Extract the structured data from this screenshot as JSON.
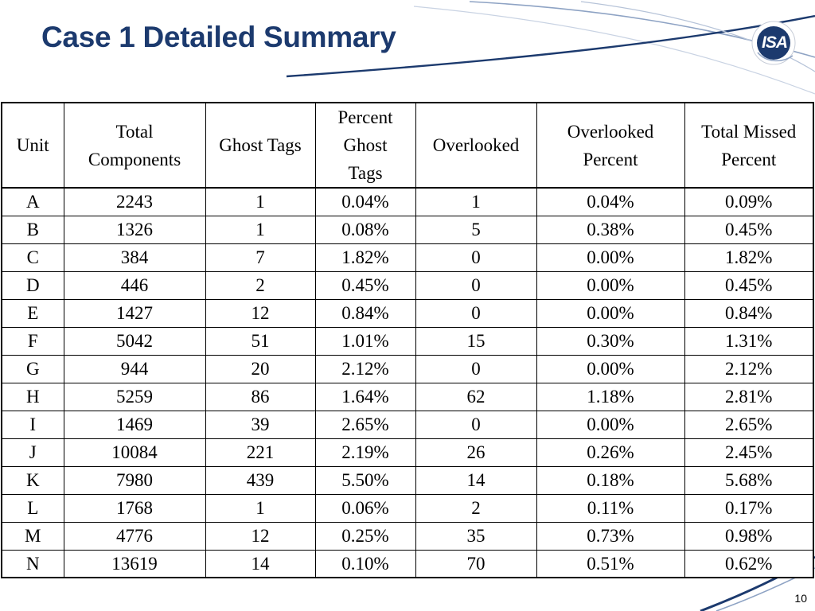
{
  "slide": {
    "title": "Case 1 Detailed Summary",
    "page_number": "10",
    "logo": {
      "text": "ISA",
      "accent_color": "#1c3a6e",
      "icon": "isa-logo-icon"
    },
    "colors": {
      "title": "#1c3a6e",
      "swoosh_dark": "#1c3a6e",
      "swoosh_light": "#8ea3c4"
    }
  },
  "table": {
    "headers": [
      {
        "key": "unit",
        "label": "Unit"
      },
      {
        "key": "total",
        "label": "Total Components"
      },
      {
        "key": "ghost",
        "label": "Ghost Tags"
      },
      {
        "key": "pct_ghost",
        "label": "Percent Ghost Tags"
      },
      {
        "key": "overlooked",
        "label": "Overlooked"
      },
      {
        "key": "pct_overlooked",
        "label": "Overlooked Percent"
      },
      {
        "key": "pct_total_missed",
        "label": "Total Missed Percent"
      }
    ],
    "rows": [
      [
        "A",
        "2243",
        "1",
        "0.04%",
        "1",
        "0.04%",
        "0.09%"
      ],
      [
        "B",
        "1326",
        "1",
        "0.08%",
        "5",
        "0.38%",
        "0.45%"
      ],
      [
        "C",
        "384",
        "7",
        "1.82%",
        "0",
        "0.00%",
        "1.82%"
      ],
      [
        "D",
        "446",
        "2",
        "0.45%",
        "0",
        "0.00%",
        "0.45%"
      ],
      [
        "E",
        "1427",
        "12",
        "0.84%",
        "0",
        "0.00%",
        "0.84%"
      ],
      [
        "F",
        "5042",
        "51",
        "1.01%",
        "15",
        "0.30%",
        "1.31%"
      ],
      [
        "G",
        "944",
        "20",
        "2.12%",
        "0",
        "0.00%",
        "2.12%"
      ],
      [
        "H",
        "5259",
        "86",
        "1.64%",
        "62",
        "1.18%",
        "2.81%"
      ],
      [
        "I",
        "1469",
        "39",
        "2.65%",
        "0",
        "0.00%",
        "2.65%"
      ],
      [
        "J",
        "10084",
        "221",
        "2.19%",
        "26",
        "0.26%",
        "2.45%"
      ],
      [
        "K",
        "7980",
        "439",
        "5.50%",
        "14",
        "0.18%",
        "5.68%"
      ],
      [
        "L",
        "1768",
        "1",
        "0.06%",
        "2",
        "0.11%",
        "0.17%"
      ],
      [
        "M",
        "4776",
        "12",
        "0.25%",
        "35",
        "0.73%",
        "0.98%"
      ],
      [
        "N",
        "13619",
        "14",
        "0.10%",
        "70",
        "0.51%",
        "0.62%"
      ]
    ]
  }
}
